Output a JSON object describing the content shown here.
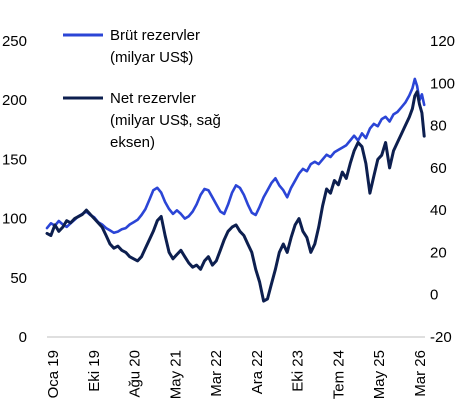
{
  "chart_data": {
    "type": "line",
    "x_categories": [
      "Oca 19",
      "Eki 19",
      "Ağu 20",
      "May 21",
      "Mar 22",
      "Ara 22",
      "Eki 23",
      "Tem 24",
      "May 25",
      "Mar 26"
    ],
    "left_axis": {
      "ticks": [
        0,
        50,
        100,
        150,
        200,
        250
      ],
      "range": [
        0,
        250
      ]
    },
    "right_axis": {
      "ticks": [
        -20,
        0,
        20,
        40,
        60,
        80,
        100,
        120
      ],
      "range": [
        -20,
        120
      ]
    },
    "legend": {
      "placement": "top-left",
      "entries": [
        {
          "name_line1": "Brüt rezervler",
          "name_line2": "(milyar US$)",
          "name_line3": "",
          "color": "#2b45d6"
        },
        {
          "name_line1": "Net rezervler",
          "name_line2": "(milyar US$, sağ",
          "name_line3": "eksen)",
          "color": "#0d1f4f"
        }
      ]
    },
    "series": [
      {
        "name": "Brüt rezervler",
        "axis": "left",
        "color": "#2b45d6",
        "points": [
          [
            0,
            92
          ],
          [
            0.25,
            96
          ],
          [
            0.5,
            94
          ],
          [
            0.75,
            98
          ],
          [
            1,
            95
          ],
          [
            1.25,
            93
          ],
          [
            1.5,
            96
          ],
          [
            1.75,
            99
          ],
          [
            2,
            102
          ],
          [
            2.25,
            104
          ],
          [
            2.5,
            106
          ],
          [
            2.75,
            103
          ],
          [
            3,
            101
          ],
          [
            3.25,
            97
          ],
          [
            3.5,
            95
          ],
          [
            3.75,
            92
          ],
          [
            4,
            90
          ],
          [
            4.25,
            88
          ],
          [
            4.5,
            89
          ],
          [
            4.75,
            91
          ],
          [
            5,
            92
          ],
          [
            5.25,
            95
          ],
          [
            5.5,
            97
          ],
          [
            5.75,
            99
          ],
          [
            6,
            103
          ],
          [
            6.25,
            108
          ],
          [
            6.5,
            116
          ],
          [
            6.75,
            124
          ],
          [
            7,
            126
          ],
          [
            7.25,
            122
          ],
          [
            7.5,
            114
          ],
          [
            7.75,
            108
          ],
          [
            8,
            104
          ],
          [
            8.25,
            107
          ],
          [
            8.5,
            104
          ],
          [
            8.75,
            100
          ],
          [
            9,
            102
          ],
          [
            9.25,
            106
          ],
          [
            9.5,
            112
          ],
          [
            9.75,
            120
          ],
          [
            10,
            125
          ],
          [
            10.25,
            124
          ],
          [
            10.5,
            118
          ],
          [
            10.75,
            112
          ],
          [
            11,
            106
          ],
          [
            11.25,
            104
          ],
          [
            11.5,
            112
          ],
          [
            11.75,
            122
          ],
          [
            12,
            128
          ],
          [
            12.25,
            126
          ],
          [
            12.5,
            120
          ],
          [
            12.75,
            112
          ],
          [
            13,
            105
          ],
          [
            13.25,
            103
          ],
          [
            13.5,
            110
          ],
          [
            13.75,
            118
          ],
          [
            14,
            124
          ],
          [
            14.25,
            130
          ],
          [
            14.5,
            134
          ],
          [
            14.75,
            128
          ],
          [
            15,
            124
          ],
          [
            15.25,
            118
          ],
          [
            15.5,
            126
          ],
          [
            15.75,
            132
          ],
          [
            16,
            138
          ],
          [
            16.25,
            142
          ],
          [
            16.5,
            140
          ],
          [
            16.75,
            146
          ],
          [
            17,
            148
          ],
          [
            17.25,
            146
          ],
          [
            17.5,
            150
          ],
          [
            17.75,
            154
          ],
          [
            18,
            152
          ],
          [
            18.25,
            156
          ],
          [
            18.5,
            158
          ],
          [
            18.75,
            160
          ],
          [
            19,
            162
          ],
          [
            19.25,
            166
          ],
          [
            19.5,
            170
          ],
          [
            19.75,
            166
          ],
          [
            20,
            172
          ],
          [
            20.25,
            168
          ],
          [
            20.5,
            176
          ],
          [
            20.75,
            180
          ],
          [
            21,
            178
          ],
          [
            21.25,
            184
          ],
          [
            21.5,
            186
          ],
          [
            21.75,
            182
          ],
          [
            22,
            188
          ],
          [
            22.25,
            190
          ],
          [
            22.5,
            194
          ],
          [
            22.75,
            198
          ],
          [
            23,
            204
          ],
          [
            23.2,
            210
          ],
          [
            23.35,
            218
          ],
          [
            23.5,
            212
          ],
          [
            23.65,
            200
          ],
          [
            23.8,
            205
          ],
          [
            23.95,
            196
          ]
        ]
      },
      {
        "name": "Net rezervler",
        "axis": "right",
        "color": "#0d1f4f",
        "points": [
          [
            0,
            29
          ],
          [
            0.25,
            28
          ],
          [
            0.5,
            33
          ],
          [
            0.75,
            30
          ],
          [
            1,
            32
          ],
          [
            1.25,
            35
          ],
          [
            1.5,
            34
          ],
          [
            1.75,
            36
          ],
          [
            2,
            37
          ],
          [
            2.25,
            38
          ],
          [
            2.5,
            40
          ],
          [
            2.75,
            38
          ],
          [
            3,
            36
          ],
          [
            3.25,
            34
          ],
          [
            3.5,
            32
          ],
          [
            3.75,
            28
          ],
          [
            4,
            24
          ],
          [
            4.25,
            22
          ],
          [
            4.5,
            23
          ],
          [
            4.75,
            21
          ],
          [
            5,
            20
          ],
          [
            5.25,
            18
          ],
          [
            5.5,
            17
          ],
          [
            5.75,
            16
          ],
          [
            6,
            18
          ],
          [
            6.25,
            22
          ],
          [
            6.5,
            26
          ],
          [
            6.75,
            30
          ],
          [
            7,
            35
          ],
          [
            7.25,
            37
          ],
          [
            7.5,
            28
          ],
          [
            7.75,
            20
          ],
          [
            8,
            17
          ],
          [
            8.25,
            19
          ],
          [
            8.5,
            21
          ],
          [
            8.75,
            18
          ],
          [
            9,
            15
          ],
          [
            9.25,
            13
          ],
          [
            9.5,
            14
          ],
          [
            9.75,
            12
          ],
          [
            10,
            16
          ],
          [
            10.25,
            18
          ],
          [
            10.5,
            14
          ],
          [
            10.75,
            16
          ],
          [
            11,
            21
          ],
          [
            11.25,
            26
          ],
          [
            11.5,
            30
          ],
          [
            11.75,
            32
          ],
          [
            12,
            33
          ],
          [
            12.25,
            30
          ],
          [
            12.5,
            28
          ],
          [
            12.75,
            24
          ],
          [
            13,
            20
          ],
          [
            13.25,
            12
          ],
          [
            13.5,
            6
          ],
          [
            13.75,
            -3
          ],
          [
            14,
            -2
          ],
          [
            14.25,
            5
          ],
          [
            14.5,
            12
          ],
          [
            14.75,
            20
          ],
          [
            15,
            24
          ],
          [
            15.25,
            20
          ],
          [
            15.5,
            27
          ],
          [
            15.75,
            33
          ],
          [
            16,
            36
          ],
          [
            16.25,
            30
          ],
          [
            16.5,
            27
          ],
          [
            16.75,
            20
          ],
          [
            17,
            24
          ],
          [
            17.25,
            32
          ],
          [
            17.5,
            42
          ],
          [
            17.75,
            50
          ],
          [
            18,
            48
          ],
          [
            18.25,
            54
          ],
          [
            18.5,
            52
          ],
          [
            18.75,
            58
          ],
          [
            19,
            55
          ],
          [
            19.25,
            62
          ],
          [
            19.5,
            68
          ],
          [
            19.75,
            72
          ],
          [
            20,
            70
          ],
          [
            20.25,
            62
          ],
          [
            20.5,
            48
          ],
          [
            20.75,
            56
          ],
          [
            21,
            64
          ],
          [
            21.25,
            66
          ],
          [
            21.5,
            72
          ],
          [
            21.75,
            60
          ],
          [
            22,
            68
          ],
          [
            22.25,
            72
          ],
          [
            22.5,
            76
          ],
          [
            22.75,
            80
          ],
          [
            23,
            84
          ],
          [
            23.2,
            88
          ],
          [
            23.35,
            94
          ],
          [
            23.5,
            96
          ],
          [
            23.65,
            90
          ],
          [
            23.8,
            86
          ],
          [
            23.95,
            75
          ]
        ]
      }
    ]
  }
}
